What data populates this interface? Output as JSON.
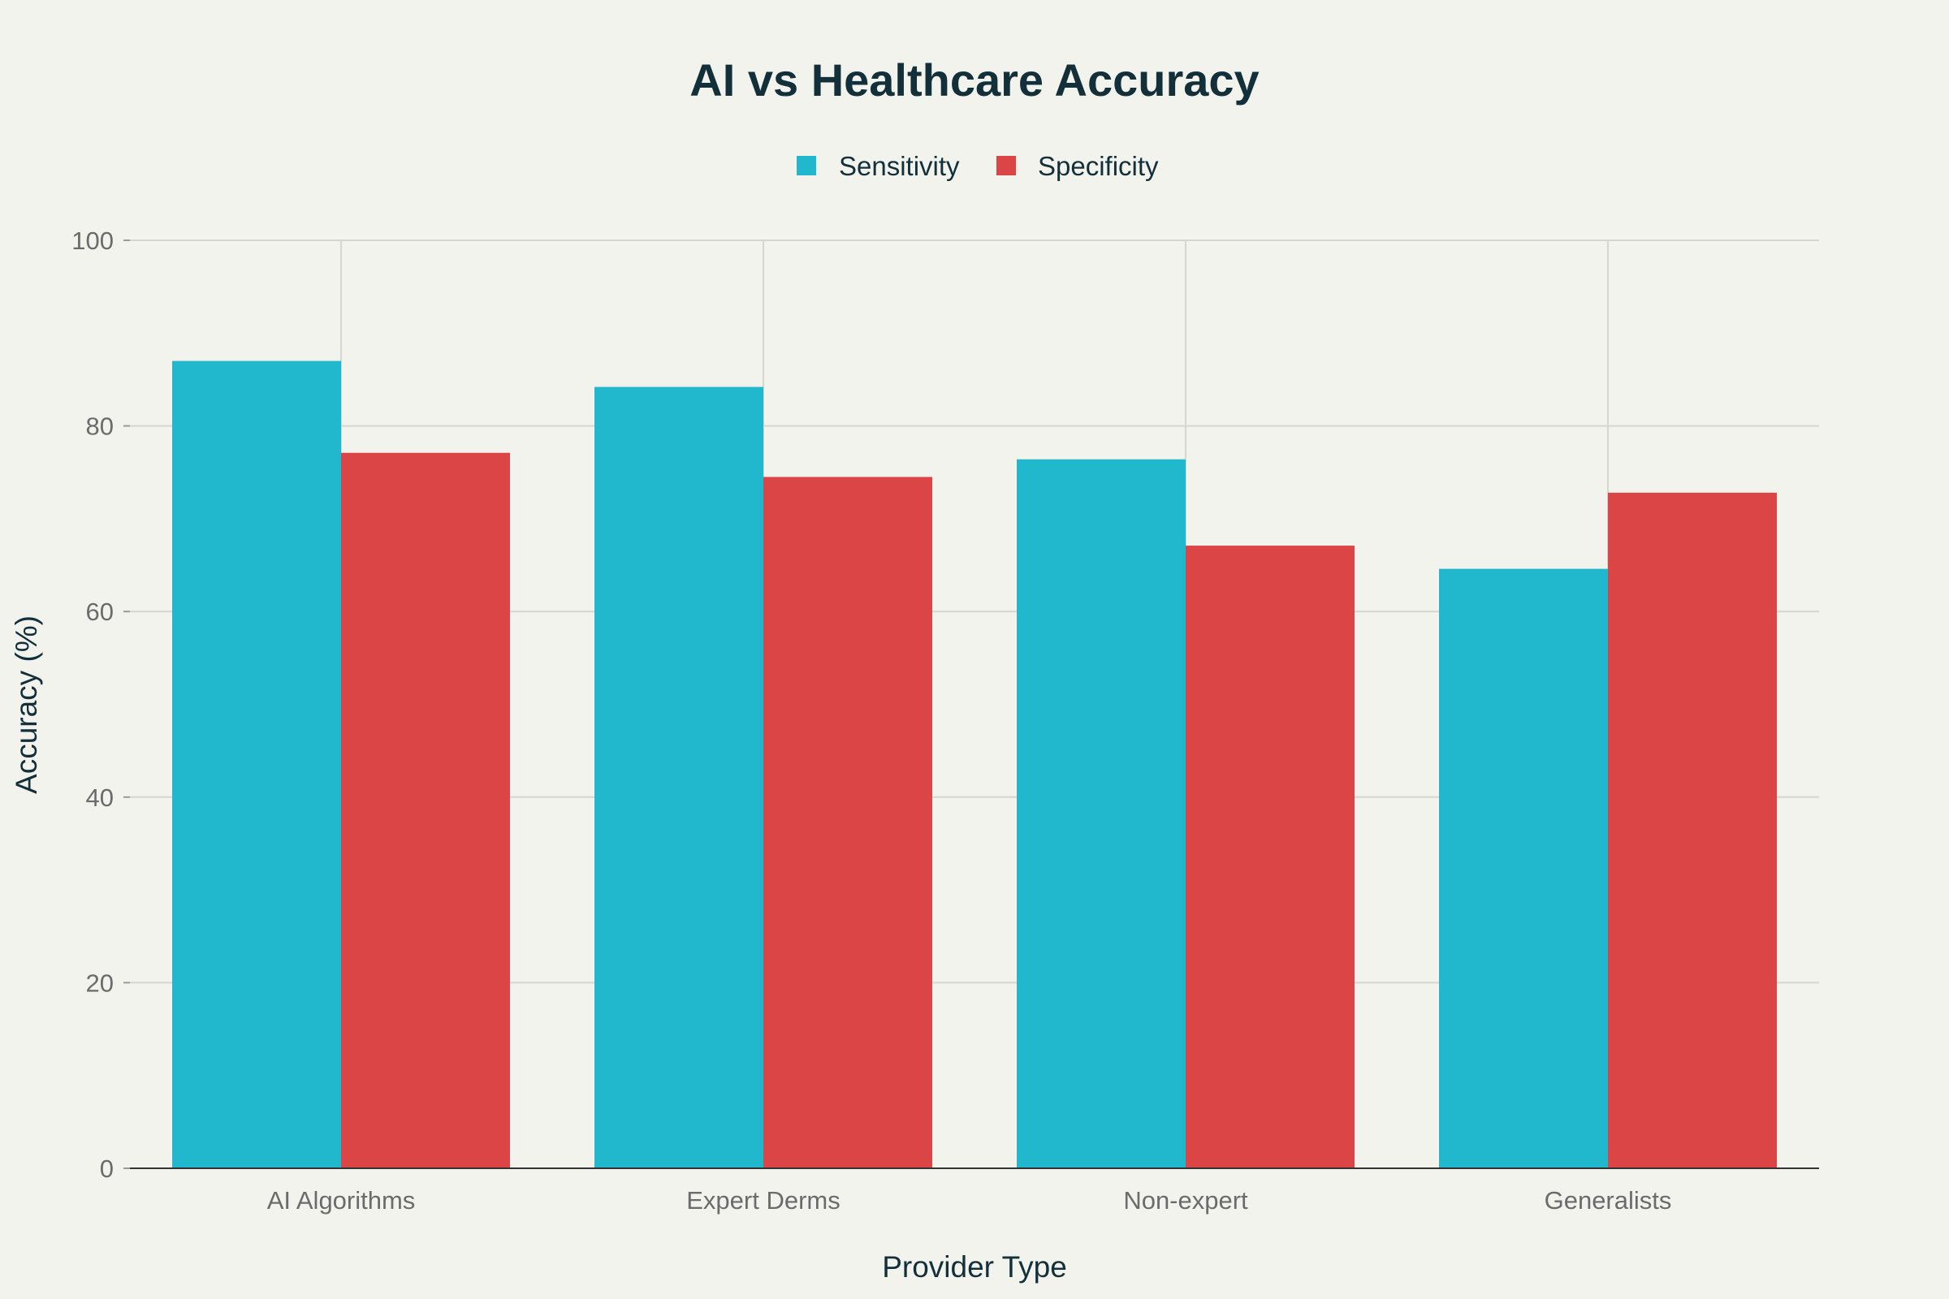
{
  "chart_data": {
    "type": "bar",
    "title": "AI vs Healthcare Accuracy",
    "xlabel": "Provider Type",
    "ylabel": "Accuracy (%)",
    "categories": [
      "AI Algorithms",
      "Expert Derms",
      "Non-expert",
      "Generalists"
    ],
    "series": [
      {
        "name": "Sensitivity",
        "color": "#21b7cc",
        "values": [
          87.0,
          84.2,
          76.4,
          64.6
        ]
      },
      {
        "name": "Specificity",
        "color": "#db4546",
        "values": [
          77.1,
          74.5,
          67.1,
          72.8
        ]
      }
    ],
    "ylim": [
      0,
      100
    ],
    "yticks": [
      0,
      20,
      40,
      60,
      80,
      100
    ],
    "grid": true,
    "legend_position": "top-center"
  }
}
